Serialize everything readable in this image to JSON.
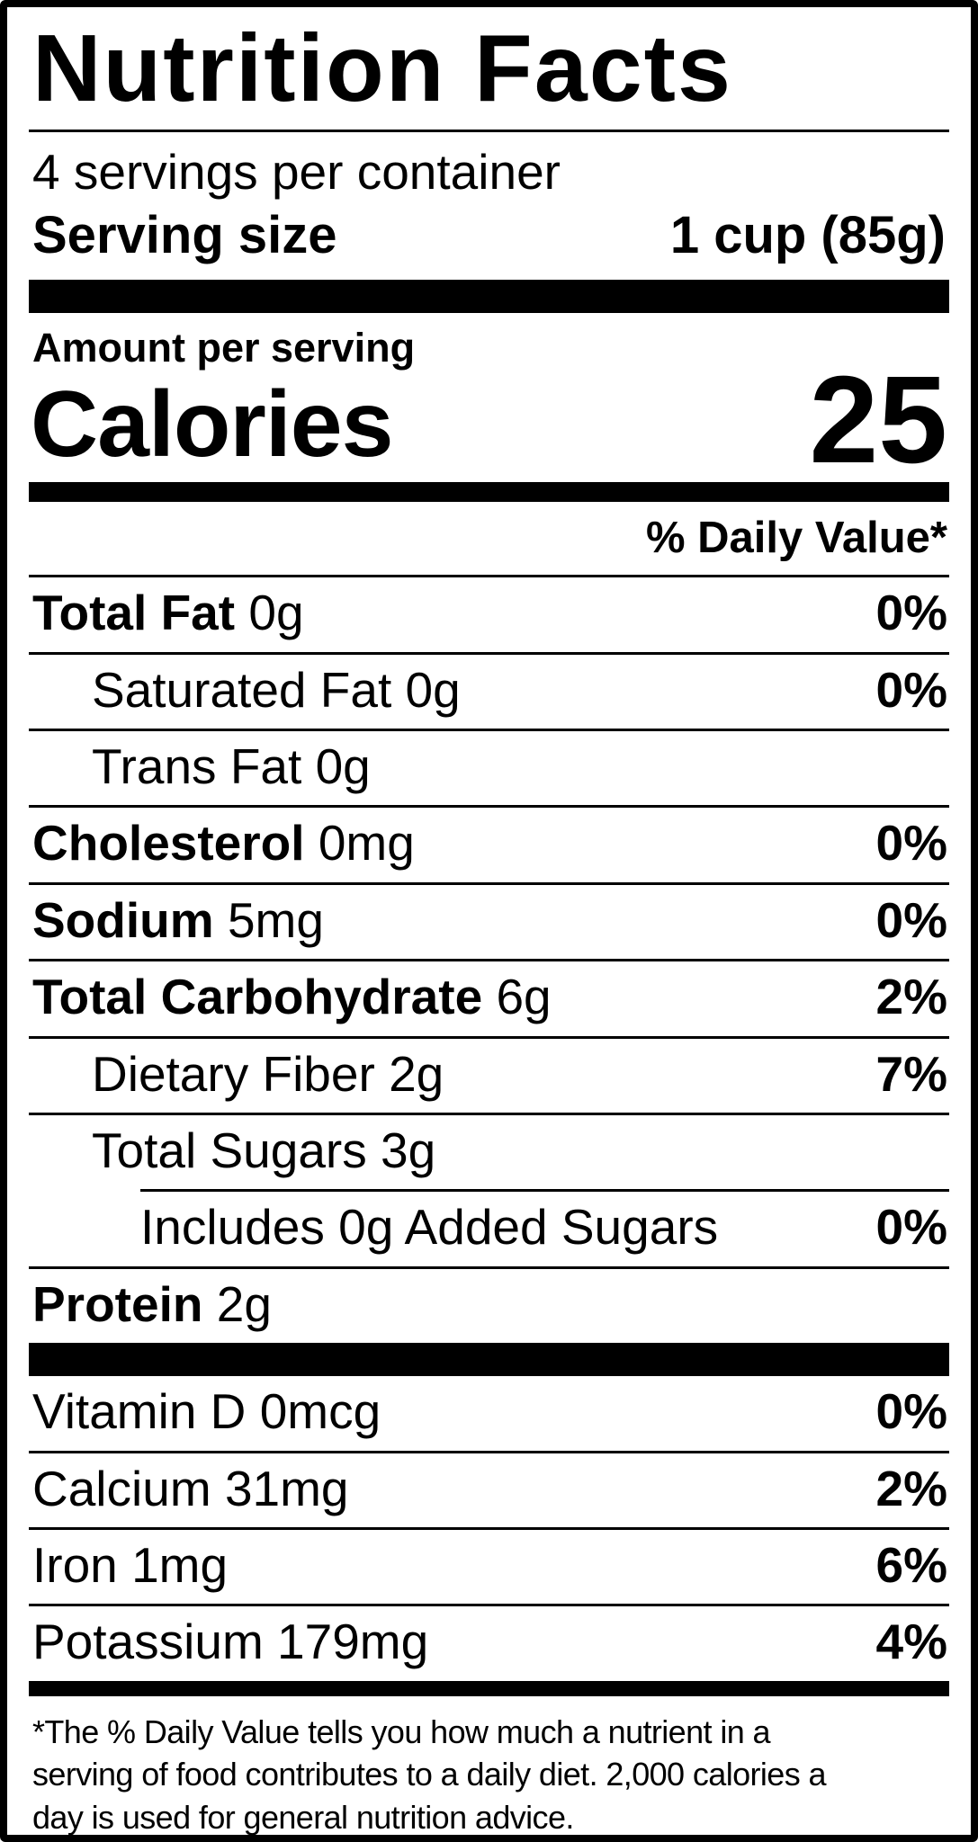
{
  "colors": {
    "ink": "#000000",
    "paper": "#ffffff"
  },
  "label": {
    "title": "Nutrition Facts",
    "servings_per_container": "4 servings per container",
    "serving_size": {
      "label": "Serving size",
      "value": "1 cup (85g)"
    },
    "amount_per_serving": "Amount per serving",
    "calories": {
      "label": "Calories",
      "value": "25"
    },
    "daily_value_header": "% Daily Value*",
    "nutrients": [
      {
        "name": "Total Fat",
        "amount": "0g",
        "dv": "0%"
      },
      {
        "name": "Saturated Fat",
        "amount": "0g",
        "dv": "0%"
      },
      {
        "name": "Trans Fat",
        "amount": "0g",
        "dv": ""
      },
      {
        "name": "Cholesterol",
        "amount": "0mg",
        "dv": "0%"
      },
      {
        "name": "Sodium",
        "amount": "5mg",
        "dv": "0%"
      },
      {
        "name": "Total Carbohydrate",
        "amount": "6g",
        "dv": "2%"
      },
      {
        "name": "Dietary Fiber",
        "amount": "2g",
        "dv": "7%"
      },
      {
        "name": "Total Sugars",
        "amount": "3g",
        "dv": ""
      },
      {
        "name": "Includes 0g Added Sugars",
        "amount": "",
        "dv": "0%"
      },
      {
        "name": "Protein",
        "amount": "2g",
        "dv": ""
      }
    ],
    "micronutrients": [
      {
        "name": "Vitamin D",
        "amount": "0mcg",
        "dv": "0%"
      },
      {
        "name": "Calcium",
        "amount": "31mg",
        "dv": "2%"
      },
      {
        "name": "Iron",
        "amount": "1mg",
        "dv": "6%"
      },
      {
        "name": "Potassium",
        "amount": "179mg",
        "dv": "4%"
      }
    ],
    "footnote_lines": [
      "*The % Daily Value tells you how much a nutrient in a",
      "serving of food contributes to a daily diet. 2,000 calories a",
      "day is used for general nutrition advice."
    ]
  }
}
